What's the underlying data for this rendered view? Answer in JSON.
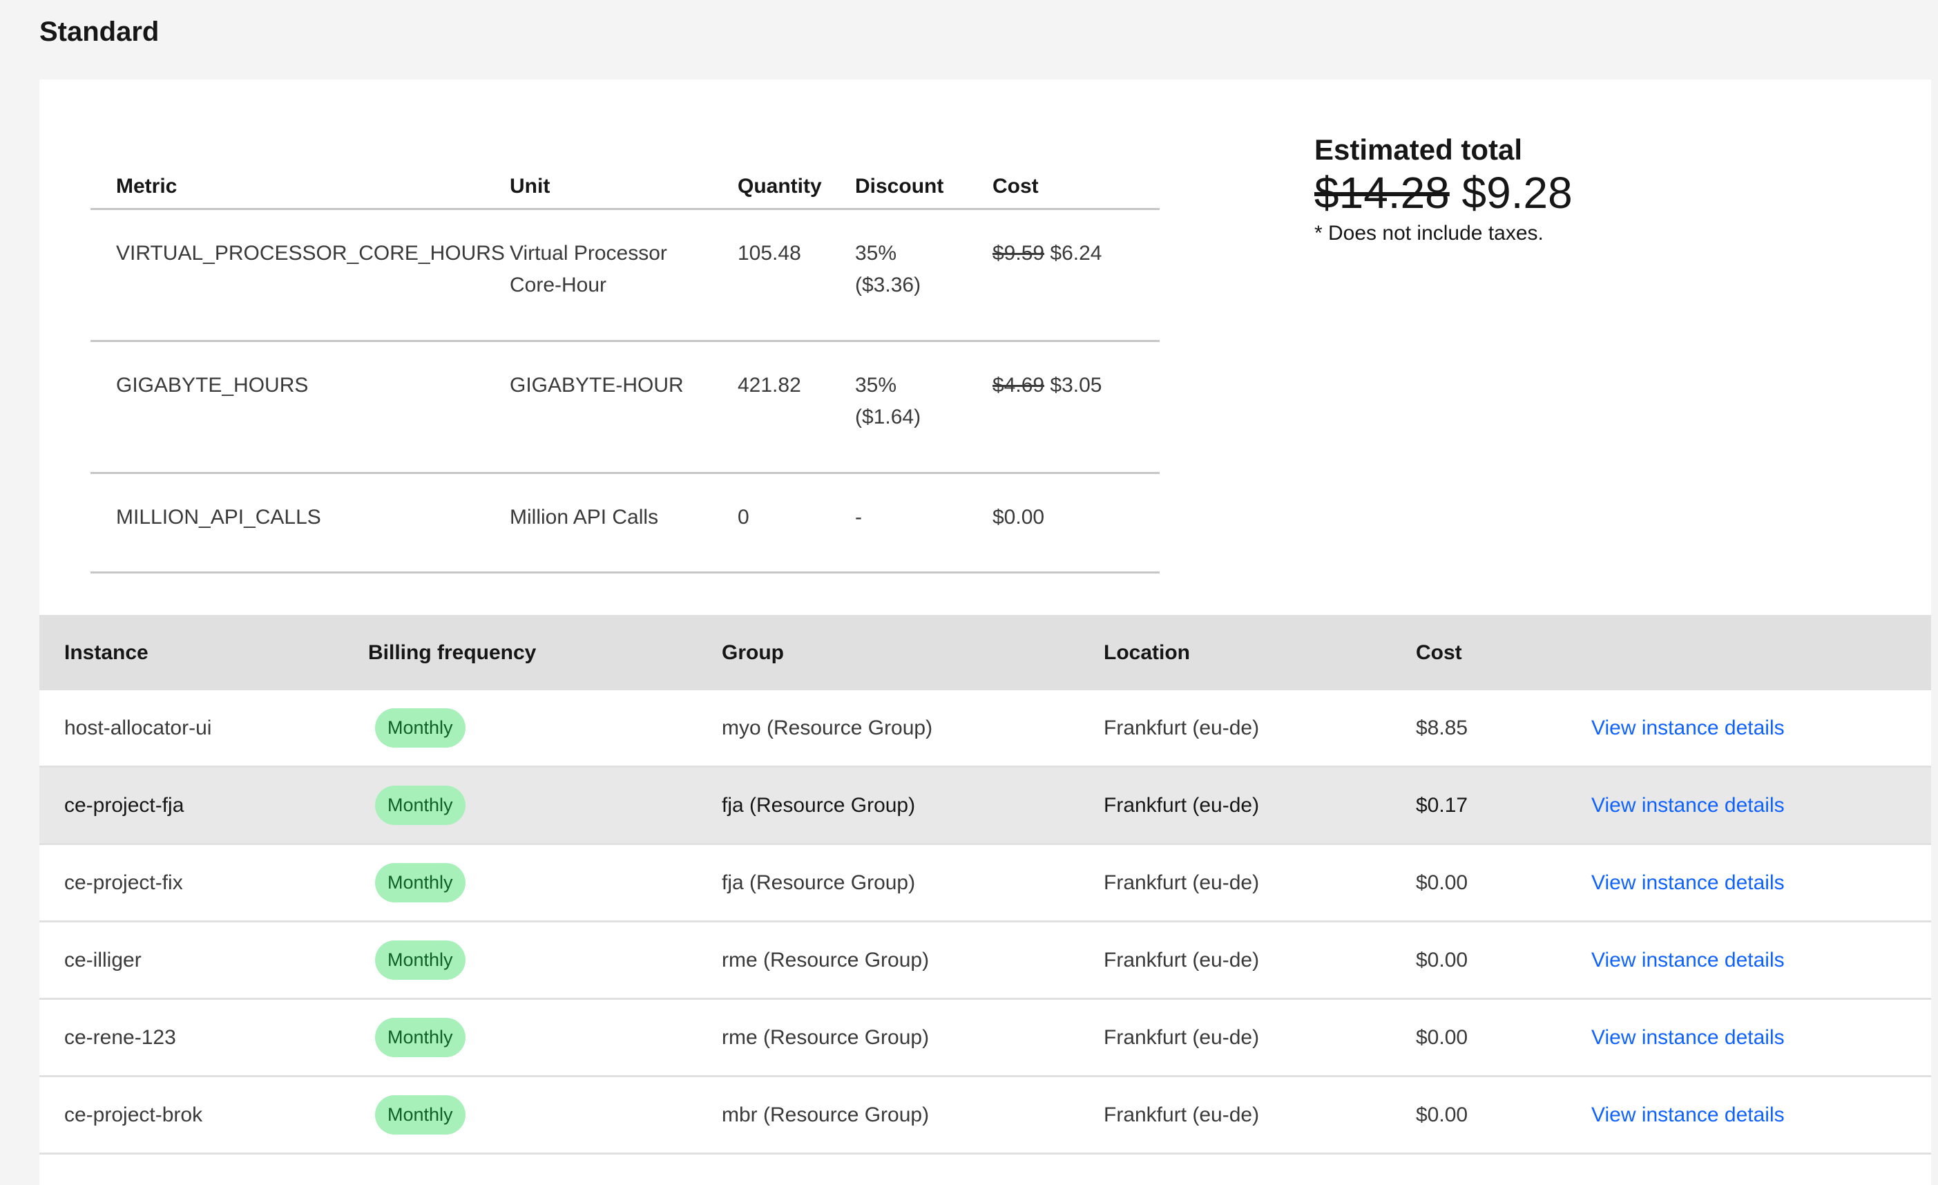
{
  "section_title": "Standard",
  "metrics": {
    "headers": [
      "Metric",
      "Unit",
      "Quantity",
      "Discount",
      "Cost"
    ],
    "rows": [
      {
        "metric": "VIRTUAL_PROCESSOR_CORE_HOURS",
        "unit_line1": "Virtual Processor",
        "unit_line2": "Core-Hour",
        "quantity": "105.48",
        "discount_pct": "35%",
        "discount_amt": "($3.36)",
        "original_cost": "$9.59",
        "cost": "$6.24"
      },
      {
        "metric": "GIGABYTE_HOURS",
        "unit_line1": "GIGABYTE-HOUR",
        "unit_line2": "",
        "quantity": "421.82",
        "discount_pct": "35%",
        "discount_amt": "($1.64)",
        "original_cost": "$4.69",
        "cost": "$3.05"
      },
      {
        "metric": "MILLION_API_CALLS",
        "unit_line1": "Million API Calls",
        "unit_line2": "",
        "quantity": "0",
        "discount_pct": "-",
        "discount_amt": "",
        "original_cost": "",
        "cost": "$0.00"
      }
    ]
  },
  "estimate": {
    "heading": "Estimated total",
    "original": "$14.28",
    "total": "$9.28",
    "note": "* Does not include taxes."
  },
  "instances": {
    "headers": [
      "Instance",
      "Billing frequency",
      "Group",
      "Location",
      "Cost",
      ""
    ],
    "link_label": "View instance details",
    "rows": [
      {
        "name": "host-allocator-ui",
        "billing": "Monthly",
        "group": "myo (Resource Group)",
        "location": "Frankfurt (eu-de)",
        "cost": "$8.85"
      },
      {
        "name": "ce-project-fja",
        "billing": "Monthly",
        "group": "fja (Resource Group)",
        "location": "Frankfurt (eu-de)",
        "cost": "$0.17",
        "highlighted": true
      },
      {
        "name": "ce-project-fix",
        "billing": "Monthly",
        "group": "fja (Resource Group)",
        "location": "Frankfurt (eu-de)",
        "cost": "$0.00"
      },
      {
        "name": "ce-illiger",
        "billing": "Monthly",
        "group": "rme (Resource Group)",
        "location": "Frankfurt (eu-de)",
        "cost": "$0.00"
      },
      {
        "name": "ce-rene-123",
        "billing": "Monthly",
        "group": "rme (Resource Group)",
        "location": "Frankfurt (eu-de)",
        "cost": "$0.00"
      },
      {
        "name": "ce-project-brok",
        "billing": "Monthly",
        "group": "mbr (Resource Group)",
        "location": "Frankfurt (eu-de)",
        "cost": "$0.00"
      }
    ]
  },
  "colors": {
    "badge_bg": "#a7f0ba",
    "badge_text": "#0e6027",
    "link": "#0f62fe",
    "header_bg": "#e0e0e0",
    "page_bg": "#f4f4f4"
  }
}
